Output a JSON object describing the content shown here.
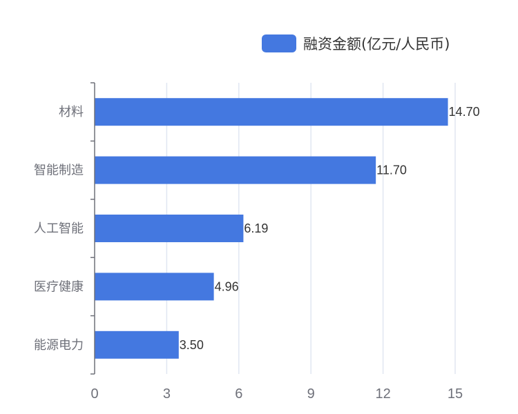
{
  "chart_data": {
    "type": "bar",
    "orientation": "horizontal",
    "categories": [
      "材料",
      "智能制造",
      "人工智能",
      "医疗健康",
      "能源电力"
    ],
    "series": [
      {
        "name": "融资金额(亿元/人民币)",
        "values": [
          14.7,
          11.7,
          6.19,
          4.96,
          3.5
        ],
        "value_labels": [
          "14.70",
          "11.70",
          "6.19",
          "4.96",
          "3.50"
        ],
        "color": "#4478e0"
      }
    ],
    "xlim": [
      0,
      15
    ],
    "xticks": [
      "0",
      "3",
      "6",
      "9",
      "12",
      "15"
    ],
    "grid": "vertical",
    "legend": "top-right"
  },
  "colors": {
    "bar": "#4478e0",
    "grid": "#e0e6f1",
    "axis": "#6e7079",
    "tick_text": "#6e7079",
    "label_text": "#333333"
  }
}
